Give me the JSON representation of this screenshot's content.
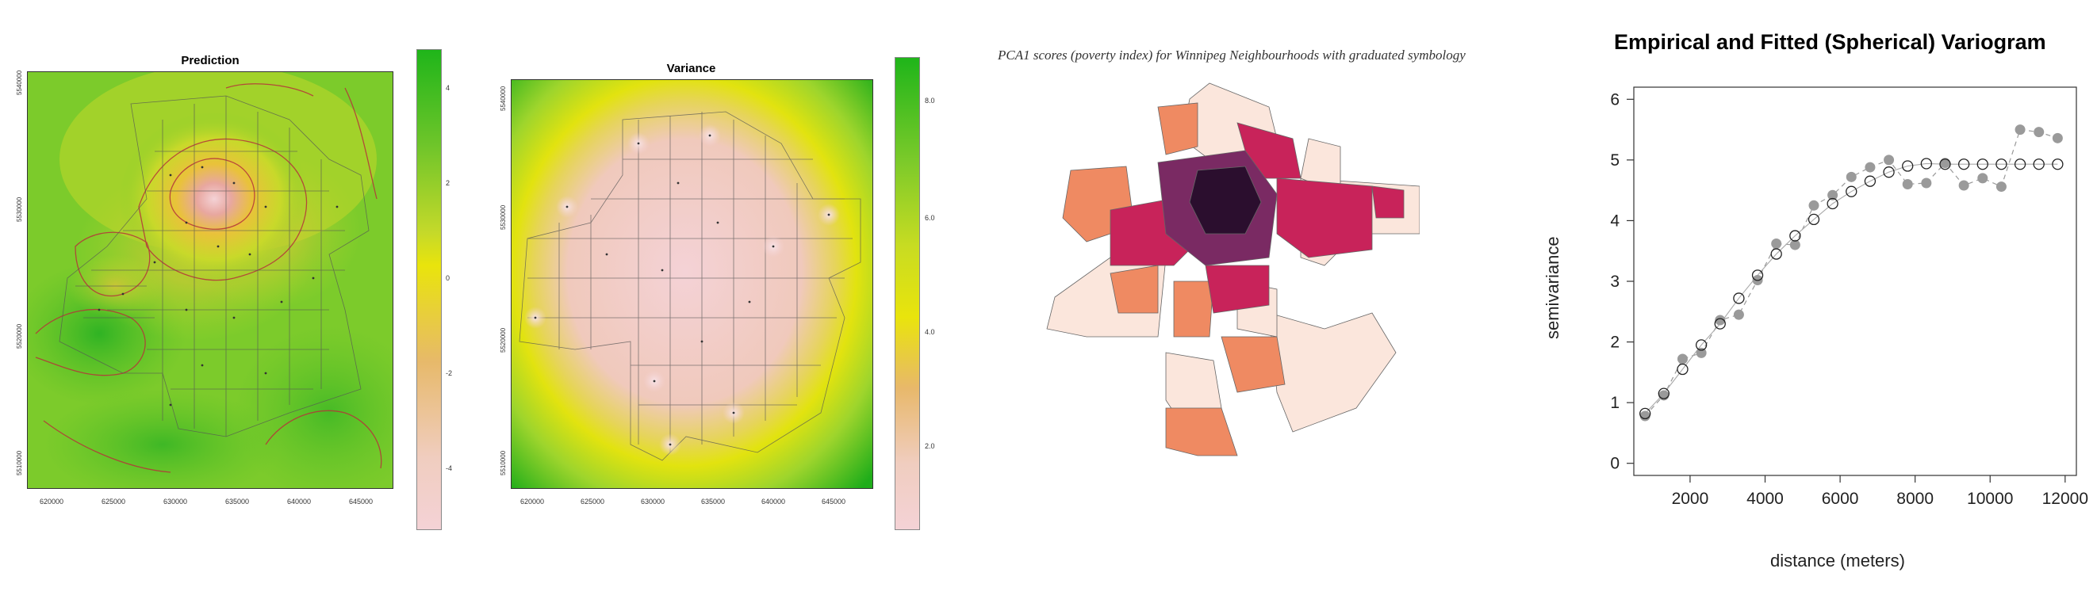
{
  "chart_data": [
    {
      "type": "heatmap",
      "title": "Prediction",
      "x_ticks": [
        "620000",
        "625000",
        "630000",
        "635000",
        "640000",
        "645000"
      ],
      "y_ticks": [
        "5520000",
        "5530000",
        "5540000",
        "5510000"
      ],
      "colorbar": {
        "ticks": [
          "4",
          "2",
          "0",
          "-2",
          "-4"
        ],
        "colors": {
          "high": "#1fb51a",
          "mid": "#e9e40c",
          "low": "#f4d2d6"
        }
      }
    },
    {
      "type": "heatmap",
      "title": "Variance",
      "x_ticks": [
        "620000",
        "625000",
        "630000",
        "635000",
        "640000",
        "645000"
      ],
      "y_ticks": [
        "5510000",
        "5520000",
        "5530000",
        "5540000"
      ],
      "colorbar": {
        "ticks": [
          "8.0",
          "6.0",
          "4.0",
          "2.0"
        ],
        "colors": {
          "high": "#1fb51a",
          "mid": "#e9e40c",
          "low": "#f4d2d6"
        }
      }
    },
    {
      "type": "map",
      "title": "PCA1 scores (poverty index) for Winnipeg Neighbourhoods with graduated symbology",
      "classes": [
        {
          "color": "#fbe6dc"
        },
        {
          "color": "#ef8a62"
        },
        {
          "color": "#c8235a"
        },
        {
          "color": "#7a2a63"
        },
        {
          "color": "#2b0e2e"
        }
      ]
    },
    {
      "type": "scatter",
      "title": "Empirical and Fitted (Spherical) Variogram",
      "xlabel": "distance (meters)",
      "ylabel": "semivariance",
      "xlim": [
        500,
        12300
      ],
      "ylim": [
        -0.2,
        6.2
      ],
      "x_ticks": [
        2000,
        4000,
        6000,
        8000,
        10000,
        12000
      ],
      "y_ticks": [
        0,
        1,
        2,
        3,
        4,
        5,
        6
      ],
      "series": [
        {
          "marker": "filled-grey-dashed",
          "x": [
            800,
            1300,
            1800,
            2300,
            2800,
            3300,
            3800,
            4300,
            4800,
            5300,
            5800,
            6300,
            6800,
            7300,
            7800,
            8300,
            8800,
            9300,
            9800,
            10300,
            10800,
            11300,
            11800
          ],
          "y": [
            0.78,
            1.12,
            1.72,
            1.82,
            2.36,
            2.45,
            3.02,
            3.62,
            3.6,
            4.25,
            4.42,
            4.72,
            4.88,
            5.0,
            4.6,
            4.62,
            4.95,
            4.58,
            4.7,
            4.56,
            5.5,
            5.46,
            5.36
          ]
        },
        {
          "marker": "open-circle-line",
          "x": [
            800,
            1300,
            1800,
            2300,
            2800,
            3300,
            3800,
            4300,
            4800,
            5300,
            5800,
            6300,
            6800,
            7300,
            7800,
            8300,
            8800,
            9300,
            9800,
            10300,
            10800,
            11300,
            11800
          ],
          "y": [
            0.82,
            1.15,
            1.55,
            1.95,
            2.3,
            2.72,
            3.1,
            3.45,
            3.75,
            4.02,
            4.28,
            4.48,
            4.65,
            4.8,
            4.9,
            4.94,
            4.93,
            4.93,
            4.93,
            4.93,
            4.93,
            4.93,
            4.93
          ]
        }
      ]
    }
  ]
}
